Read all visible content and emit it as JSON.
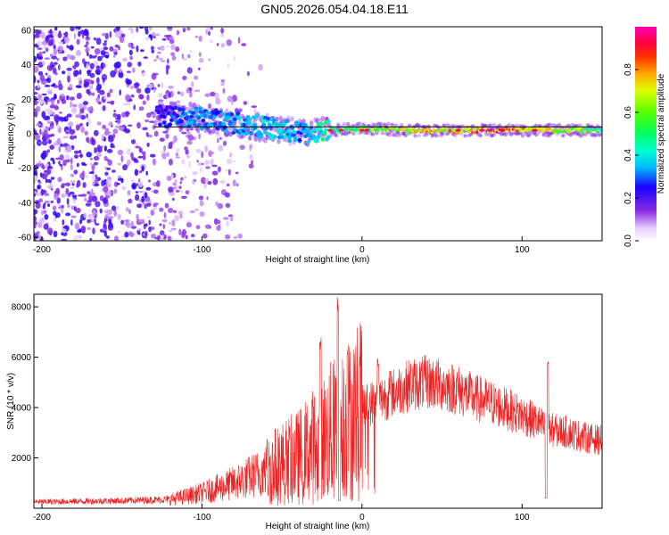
{
  "title": "GN05.2026.054.04.18.E11",
  "colorbar": {
    "label": "Normalized spectral amplitude",
    "ticks": [
      "0.0",
      "0.2",
      "0.4",
      "0.6",
      "0.8"
    ],
    "tick_values": [
      0.0,
      0.2,
      0.4,
      0.6,
      0.8
    ],
    "range": [
      0,
      1
    ]
  },
  "chart_data": [
    {
      "type": "heatmap",
      "name": "spectrogram",
      "xlabel": "Height of straight line (km)",
      "ylabel": "Frequency (Hz)",
      "xlim": [
        -205,
        150
      ],
      "ylim": [
        -62,
        62
      ],
      "xticks": [
        -200,
        -100,
        0,
        100
      ],
      "xtick_labels": [
        "-200",
        "-100",
        "0",
        "100"
      ],
      "yticks": [
        -60,
        -40,
        -20,
        0,
        20,
        40,
        60
      ],
      "ytick_labels": [
        "-60",
        "-40",
        "-20",
        "0",
        "20",
        "40",
        "60"
      ],
      "reference_line": {
        "frequency": 4,
        "from_x": -130,
        "to_x": 150
      },
      "signal_track": [
        {
          "x": -128,
          "freq": 10,
          "amp": 0.25
        },
        {
          "x": -110,
          "freq": 10,
          "amp": 0.35
        },
        {
          "x": -90,
          "freq": 8,
          "amp": 0.35
        },
        {
          "x": -70,
          "freq": 5,
          "amp": 0.4
        },
        {
          "x": -50,
          "freq": 2,
          "amp": 0.4
        },
        {
          "x": -35,
          "freq": 0,
          "amp": 0.35
        },
        {
          "x": -20,
          "freq": 2,
          "amp": 0.55
        },
        {
          "x": 0,
          "freq": 3,
          "amp": 0.65
        },
        {
          "x": 30,
          "freq": 2,
          "amp": 0.75
        },
        {
          "x": 60,
          "freq": 2,
          "amp": 0.85
        },
        {
          "x": 80,
          "freq": 2,
          "amp": 0.95
        },
        {
          "x": 110,
          "freq": 2,
          "amp": 0.85
        },
        {
          "x": 150,
          "freq": 2,
          "amp": 0.55
        }
      ],
      "noise_region": {
        "from_x": -205,
        "to_x": -75,
        "amp": 0.2
      }
    },
    {
      "type": "line",
      "name": "snr",
      "xlabel": "Height of straight line (km)",
      "ylabel": "SNR (10 * v/v)",
      "xlim": [
        -205,
        150
      ],
      "ylim": [
        0,
        8500
      ],
      "xticks": [
        -200,
        -100,
        0,
        100
      ],
      "xtick_labels": [
        "-200",
        "-100",
        "0",
        "100"
      ],
      "yticks": [
        2000,
        4000,
        6000,
        8000
      ],
      "ytick_labels": [
        "2000",
        "4000",
        "6000",
        "8000"
      ],
      "color": "#ee2222",
      "envelope": {
        "x": [
          -205,
          -150,
          -120,
          -100,
          -80,
          -60,
          -50,
          -40,
          -30,
          -25,
          -20,
          -15,
          -10,
          -5,
          0,
          10,
          20,
          30,
          40,
          50,
          60,
          70,
          80,
          90,
          100,
          110,
          114,
          120,
          130,
          140,
          150
        ],
        "y": [
          250,
          300,
          350,
          600,
          1000,
          1500,
          1800,
          2000,
          2500,
          2700,
          3000,
          3200,
          3300,
          3700,
          4000,
          4300,
          4600,
          4900,
          5000,
          4900,
          4700,
          4400,
          4200,
          3950,
          3700,
          3400,
          3200,
          3100,
          3000,
          2800,
          2700
        ]
      },
      "spikes": [
        {
          "x": -26,
          "y": 6800
        },
        {
          "x": -15,
          "y": 8500
        },
        {
          "x": -9,
          "y": 6500
        },
        {
          "x": 10,
          "y": 6000
        },
        {
          "x": 18,
          "y": 5500
        },
        {
          "x": 116,
          "y": 6000
        }
      ],
      "dips": [
        {
          "x": -14,
          "y": 300
        },
        {
          "x": 115,
          "y": 400
        }
      ]
    }
  ]
}
